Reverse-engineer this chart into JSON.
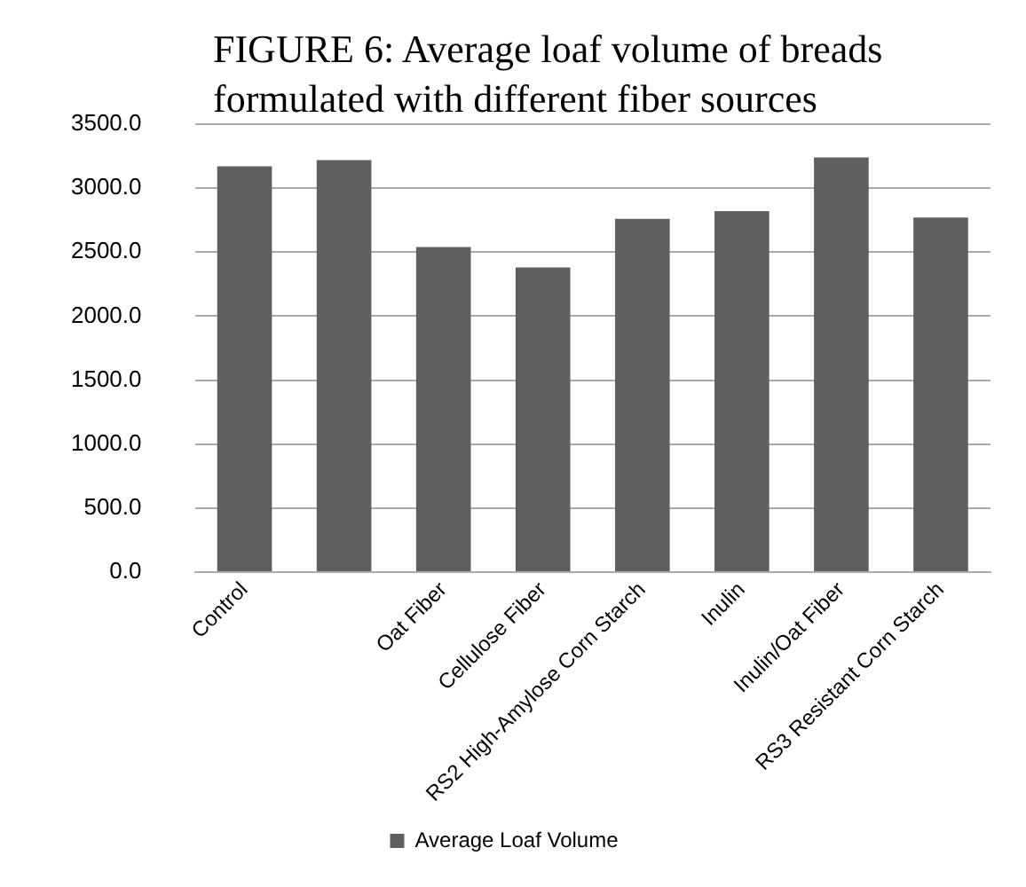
{
  "chart_data": {
    "type": "bar",
    "title": "FIGURE 6: Average loaf volume of breads formulated with different fiber sources",
    "categories": [
      "Control",
      null,
      "Oat Fiber",
      "Cellulose Fiber",
      "RS2 High-Amylose Corn Starch",
      "Inulin",
      "Inulin/Oat Fiber",
      "RS3 Resistant Corn Starch"
    ],
    "series": [
      {
        "name": "Average Loaf Volume",
        "color": "#5f5f5f",
        "values": [
          3170,
          3220,
          2540,
          2380,
          2760,
          2820,
          3240,
          2770
        ]
      }
    ],
    "ylim": [
      0,
      3500
    ],
    "yticks": [
      {
        "value": 0,
        "label": "0.0"
      },
      {
        "value": 500,
        "label": "500.0"
      },
      {
        "value": 1000,
        "label": "1000.0"
      },
      {
        "value": 1500,
        "label": "1500.0"
      },
      {
        "value": 2000,
        "label": "2000.0"
      },
      {
        "value": 2500,
        "label": "2500.0"
      },
      {
        "value": 3000,
        "label": "3000.0"
      },
      {
        "value": 3500,
        "label": "3500.0"
      }
    ],
    "grid": "y",
    "legend": "bottom"
  }
}
